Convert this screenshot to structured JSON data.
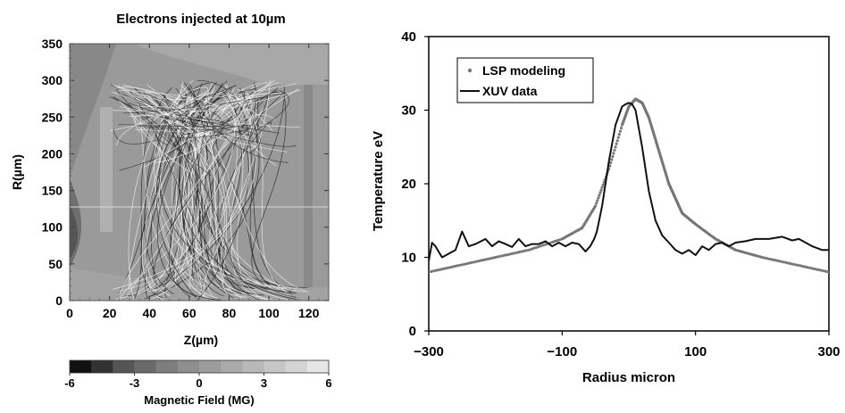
{
  "chart_data": [
    {
      "type": "heatmap",
      "title": "Electrons injected at 10µm",
      "xlabel": "Z(µm)",
      "ylabel": "R(µm)",
      "xlim": [
        0,
        130
      ],
      "ylim": [
        0,
        350
      ],
      "x_ticks": [
        0,
        20,
        40,
        60,
        80,
        100,
        120
      ],
      "y_ticks": [
        0,
        50,
        100,
        150,
        200,
        250,
        300,
        350
      ],
      "colorbar": {
        "label": "Magnetic Field (MG)",
        "min": -6,
        "max": 6,
        "ticks": [
          -6,
          -3,
          0,
          3,
          6
        ],
        "colors": [
          "#111111",
          "#333333",
          "#555555",
          "#6a6a6a",
          "#7d7d7d",
          "#8e8e8e",
          "#9c9c9c",
          "#aaaaaa",
          "#b8b8b8",
          "#c6c6c6",
          "#d4d4d4",
          "#e6e6e6"
        ]
      }
    },
    {
      "type": "line",
      "title": "",
      "xlabel": "Radius micron",
      "ylabel": "Temperature eV",
      "xlim": [
        -300,
        300
      ],
      "ylim": [
        0,
        40
      ],
      "x_ticks": [
        -300,
        -100,
        100,
        300
      ],
      "y_ticks": [
        0,
        10,
        20,
        30,
        40
      ],
      "legend_position": "top-left",
      "series": [
        {
          "name": "LSP modeling",
          "style": "dotted",
          "color": "#777777",
          "x": [
            -300,
            -250,
            -200,
            -150,
            -100,
            -70,
            -50,
            -30,
            -10,
            0,
            10,
            20,
            30,
            40,
            50,
            60,
            70,
            80,
            100,
            130,
            160,
            200,
            250,
            300
          ],
          "y": [
            8,
            9,
            10,
            11,
            12.5,
            14,
            17,
            22,
            28,
            30.5,
            31.5,
            31,
            29,
            26,
            23,
            20,
            18,
            16,
            14.5,
            12.5,
            11,
            10,
            9,
            8
          ]
        },
        {
          "name": "XUV data",
          "style": "solid",
          "color": "#111111",
          "x": [
            -300,
            -295,
            -290,
            -280,
            -270,
            -260,
            -250,
            -240,
            -230,
            -215,
            -205,
            -195,
            -185,
            -175,
            -165,
            -155,
            -145,
            -135,
            -125,
            -115,
            -105,
            -95,
            -85,
            -75,
            -65,
            -58,
            -52,
            -48,
            -40,
            -30,
            -20,
            -10,
            -5,
            0,
            5,
            10,
            20,
            30,
            40,
            50,
            60,
            70,
            80,
            90,
            100,
            110,
            120,
            130,
            140,
            150,
            160,
            175,
            190,
            210,
            230,
            245,
            255,
            265,
            275,
            290,
            300
          ],
          "y": [
            9.5,
            12,
            11.5,
            10,
            10.5,
            11,
            13.5,
            11.5,
            11.8,
            12.5,
            11.5,
            12.2,
            11.8,
            11.4,
            12.5,
            11.5,
            11.8,
            11.8,
            12.2,
            11.5,
            12,
            11.5,
            12,
            11.8,
            10.8,
            11.5,
            12.5,
            13.5,
            17,
            23,
            28,
            30.5,
            30.8,
            31,
            30.8,
            30,
            25,
            19,
            15,
            13,
            12,
            11,
            10.5,
            11,
            10.3,
            11.5,
            11,
            11.8,
            12,
            11.5,
            12,
            12.2,
            12.5,
            12.5,
            12.8,
            12.3,
            12.5,
            12,
            11.5,
            11,
            11
          ]
        }
      ]
    }
  ]
}
